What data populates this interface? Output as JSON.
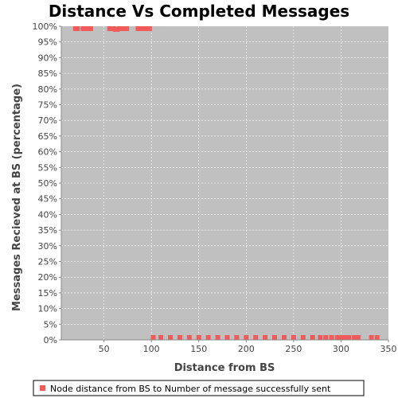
{
  "chart_data": {
    "type": "scatter",
    "title": "Distance Vs Completed Messages",
    "xlabel": "Distance from BS",
    "ylabel": "Messages Recieved at BS (percentage)",
    "xlim": [
      5,
      350
    ],
    "ylim": [
      0,
      100
    ],
    "x_ticks": [
      50,
      100,
      150,
      200,
      250,
      300,
      350
    ],
    "y_ticks": [
      0,
      5,
      10,
      15,
      20,
      25,
      30,
      35,
      40,
      45,
      50,
      55,
      60,
      65,
      70,
      75,
      80,
      85,
      90,
      95,
      100
    ],
    "y_tick_suffix": "%",
    "grid": true,
    "legend_position": "bottom",
    "colors": {
      "series": "#f05a5a",
      "plot_background": "#c0c0c0",
      "grid": "#ffffff"
    },
    "series": [
      {
        "name": "Node distance from BS to Number of message successfully sent",
        "points": [
          [
            20,
            100
          ],
          [
            22,
            100
          ],
          [
            28,
            100
          ],
          [
            30,
            100
          ],
          [
            32,
            100
          ],
          [
            34,
            100
          ],
          [
            36,
            100
          ],
          [
            56,
            100
          ],
          [
            58,
            100
          ],
          [
            60,
            99.5
          ],
          [
            62,
            99
          ],
          [
            64,
            99
          ],
          [
            66,
            99.5
          ],
          [
            68,
            100
          ],
          [
            70,
            100
          ],
          [
            72,
            100
          ],
          [
            74,
            100
          ],
          [
            86,
            100
          ],
          [
            88,
            100
          ],
          [
            90,
            99.5
          ],
          [
            92,
            99.5
          ],
          [
            94,
            100
          ],
          [
            96,
            100
          ],
          [
            98,
            100
          ],
          [
            102,
            0
          ],
          [
            110,
            0
          ],
          [
            120,
            0
          ],
          [
            130,
            0
          ],
          [
            140,
            0
          ],
          [
            150,
            0
          ],
          [
            160,
            0
          ],
          [
            170,
            0
          ],
          [
            180,
            0
          ],
          [
            190,
            0
          ],
          [
            200,
            0
          ],
          [
            210,
            0
          ],
          [
            220,
            0
          ],
          [
            230,
            0
          ],
          [
            240,
            0
          ],
          [
            250,
            0
          ],
          [
            260,
            0
          ],
          [
            270,
            0
          ],
          [
            278,
            0
          ],
          [
            284,
            0
          ],
          [
            290,
            0
          ],
          [
            296,
            0
          ],
          [
            300,
            0
          ],
          [
            304,
            0
          ],
          [
            308,
            0
          ],
          [
            314,
            0
          ],
          [
            318,
            0
          ],
          [
            332,
            0
          ],
          [
            338,
            0
          ]
        ]
      }
    ]
  }
}
